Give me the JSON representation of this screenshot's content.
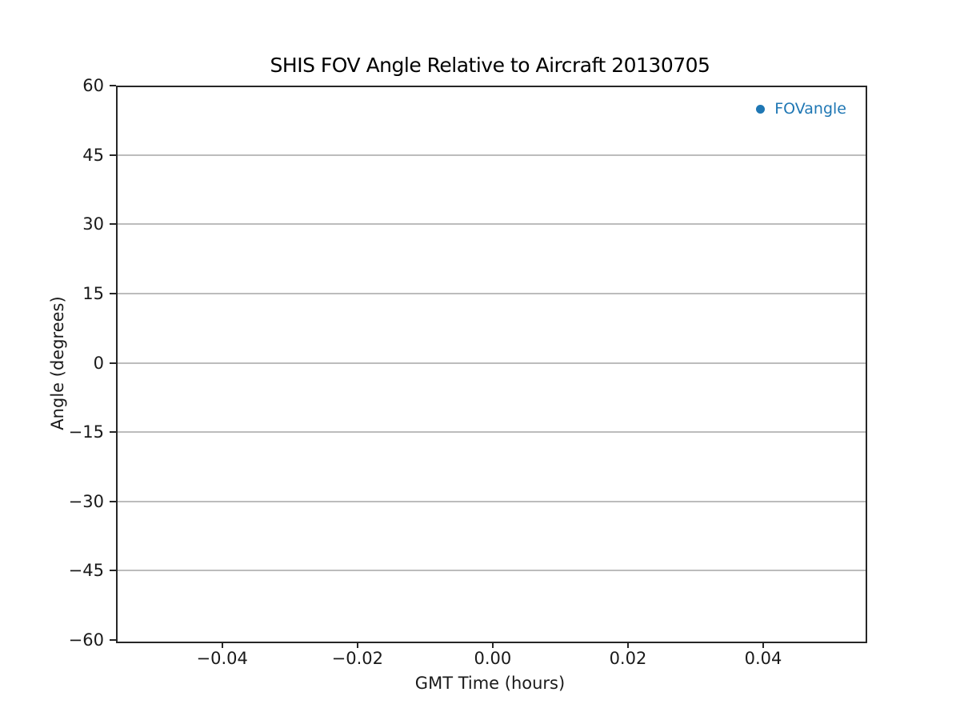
{
  "chart_data": {
    "type": "scatter",
    "title": "SHIS FOV Angle Relative to Aircraft 20130705",
    "xlabel": "GMT Time (hours)",
    "ylabel": "Angle (degrees)",
    "xlim": [
      -0.0557,
      0.0549
    ],
    "ylim": [
      -60,
      60
    ],
    "xticks": {
      "values": [
        -0.04,
        -0.02,
        0.0,
        0.02,
        0.04
      ],
      "labels": [
        "−0.04",
        "−0.02",
        "0.00",
        "0.02",
        "0.04"
      ]
    },
    "yticks": {
      "values": [
        60,
        45,
        30,
        15,
        0,
        -15,
        -30,
        -45,
        -60
      ],
      "labels": [
        "60",
        "45",
        "30",
        "15",
        "0",
        "−15",
        "−30",
        "−45",
        "−60"
      ]
    },
    "grid": {
      "horizontal": true,
      "vertical": false,
      "color": "#bcbcbc"
    },
    "legend": {
      "position": "upper right",
      "frame": false,
      "entries": [
        {
          "label": "FOVangle",
          "marker": "circle",
          "color": "#1f77b4"
        }
      ]
    },
    "series": [
      {
        "name": "FOVangle",
        "marker": "circle",
        "color": "#1f77b4",
        "points": []
      }
    ]
  },
  "colors": {
    "accent_blue": "#1f77b4",
    "axis": "#262626",
    "grid": "#bcbcbc",
    "background": "#ffffff",
    "text": "#000000"
  }
}
